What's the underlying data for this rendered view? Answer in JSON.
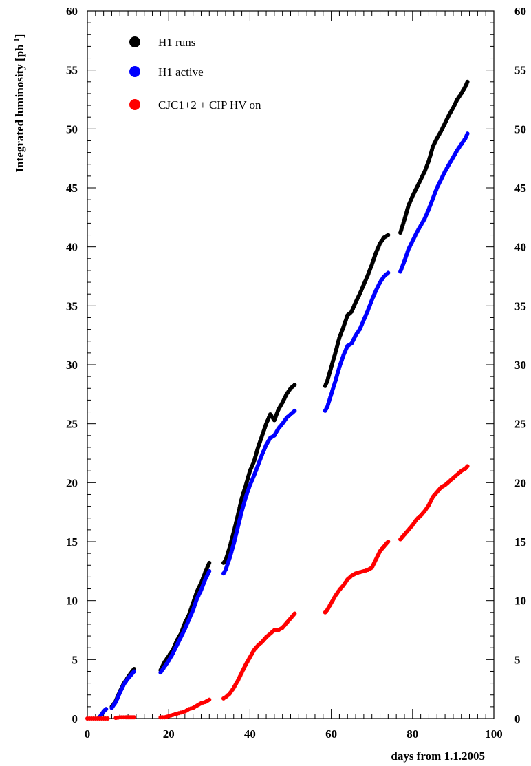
{
  "chart_data": {
    "type": "scatter",
    "title": "",
    "xlabel": "days from 1.1.2005",
    "ylabel": "Integrated luminosity [pb^-1]",
    "ylabel_main": "Integrated luminosity [pb",
    "ylabel_sup": "-1",
    "ylabel_close": "]",
    "xlim": [
      0,
      100
    ],
    "ylim": [
      0,
      60
    ],
    "xticks": [
      0,
      20,
      40,
      60,
      80,
      100
    ],
    "yticks": [
      0,
      5,
      10,
      15,
      20,
      25,
      30,
      35,
      40,
      45,
      50,
      55,
      60
    ],
    "right_axis_labels": true,
    "grid": false,
    "legend_position": "top-left",
    "series": [
      {
        "name": "H1 runs",
        "color": "#000000",
        "segments": [
          [
            [
              3.2,
              0.2
            ],
            [
              4.0,
              0.6
            ],
            [
              4.6,
              0.8
            ]
          ],
          [
            [
              6.0,
              1.0
            ],
            [
              7.0,
              1.5
            ],
            [
              8.0,
              2.3
            ],
            [
              9.0,
              3.0
            ],
            [
              10.0,
              3.5
            ],
            [
              11.0,
              4.0
            ],
            [
              11.5,
              4.2
            ]
          ],
          [
            [
              18.0,
              4.1
            ],
            [
              19.0,
              4.8
            ],
            [
              20.0,
              5.3
            ],
            [
              21.0,
              5.8
            ],
            [
              22.0,
              6.6
            ],
            [
              23.0,
              7.2
            ],
            [
              24.0,
              8.1
            ],
            [
              25.0,
              8.8
            ],
            [
              26.0,
              9.8
            ],
            [
              27.0,
              10.8
            ],
            [
              28.0,
              11.5
            ],
            [
              29.0,
              12.4
            ],
            [
              30.0,
              13.2
            ]
          ],
          [
            [
              33.5,
              13.2
            ],
            [
              34.0,
              13.4
            ],
            [
              35.0,
              14.5
            ],
            [
              36.0,
              15.8
            ],
            [
              37.0,
              17.2
            ],
            [
              38.0,
              18.7
            ],
            [
              39.0,
              19.8
            ],
            [
              40.0,
              21.0
            ],
            [
              41.0,
              21.8
            ],
            [
              42.0,
              23.0
            ],
            [
              43.0,
              24.0
            ],
            [
              44.0,
              25.0
            ],
            [
              45.0,
              25.8
            ],
            [
              46.0,
              25.3
            ],
            [
              47.0,
              26.2
            ],
            [
              48.0,
              26.8
            ],
            [
              49.0,
              27.5
            ],
            [
              50.0,
              28.0
            ],
            [
              51.0,
              28.3
            ]
          ],
          [
            [
              58.5,
              28.2
            ],
            [
              59.0,
              28.6
            ],
            [
              60.0,
              29.8
            ],
            [
              61.0,
              31.0
            ],
            [
              62.0,
              32.3
            ],
            [
              63.0,
              33.2
            ],
            [
              64.0,
              34.2
            ],
            [
              65.0,
              34.5
            ],
            [
              66.0,
              35.3
            ],
            [
              67.0,
              36.0
            ],
            [
              68.0,
              36.8
            ],
            [
              69.0,
              37.6
            ],
            [
              70.0,
              38.5
            ],
            [
              71.0,
              39.5
            ],
            [
              72.0,
              40.3
            ],
            [
              73.0,
              40.8
            ],
            [
              74.0,
              41.0
            ]
          ],
          [
            [
              77.0,
              41.2
            ],
            [
              78.0,
              42.3
            ],
            [
              79.0,
              43.5
            ],
            [
              80.0,
              44.3
            ],
            [
              81.0,
              45.0
            ],
            [
              82.0,
              45.7
            ],
            [
              83.0,
              46.4
            ],
            [
              84.0,
              47.3
            ],
            [
              85.0,
              48.5
            ],
            [
              86.0,
              49.2
            ],
            [
              87.0,
              49.8
            ],
            [
              88.0,
              50.5
            ],
            [
              89.0,
              51.2
            ],
            [
              90.0,
              51.8
            ],
            [
              91.0,
              52.5
            ],
            [
              92.0,
              53.0
            ],
            [
              93.0,
              53.6
            ],
            [
              93.5,
              54.0
            ]
          ]
        ]
      },
      {
        "name": "H1 active",
        "color": "#0000ff",
        "segments": [
          [
            [
              3.2,
              0.2
            ],
            [
              4.0,
              0.6
            ],
            [
              4.6,
              0.8
            ]
          ],
          [
            [
              6.0,
              0.9
            ],
            [
              7.0,
              1.4
            ],
            [
              8.0,
              2.2
            ],
            [
              9.0,
              2.9
            ],
            [
              10.0,
              3.4
            ],
            [
              11.0,
              3.8
            ],
            [
              11.5,
              4.0
            ]
          ],
          [
            [
              18.0,
              3.9
            ],
            [
              19.0,
              4.4
            ],
            [
              20.0,
              4.9
            ],
            [
              21.0,
              5.5
            ],
            [
              22.0,
              6.2
            ],
            [
              23.0,
              6.9
            ],
            [
              24.0,
              7.6
            ],
            [
              25.0,
              8.4
            ],
            [
              26.0,
              9.2
            ],
            [
              27.0,
              10.2
            ],
            [
              28.0,
              10.9
            ],
            [
              29.0,
              11.8
            ],
            [
              30.0,
              12.5
            ]
          ],
          [
            [
              33.5,
              12.3
            ],
            [
              34.0,
              12.6
            ],
            [
              35.0,
              13.6
            ],
            [
              36.0,
              14.8
            ],
            [
              37.0,
              16.2
            ],
            [
              38.0,
              17.6
            ],
            [
              39.0,
              18.8
            ],
            [
              40.0,
              19.8
            ],
            [
              41.0,
              20.6
            ],
            [
              42.0,
              21.5
            ],
            [
              43.0,
              22.4
            ],
            [
              44.0,
              23.2
            ],
            [
              45.0,
              23.8
            ],
            [
              46.0,
              24.0
            ],
            [
              47.0,
              24.6
            ],
            [
              48.0,
              25.0
            ],
            [
              49.0,
              25.5
            ],
            [
              50.0,
              25.8
            ],
            [
              51.0,
              26.1
            ]
          ],
          [
            [
              58.5,
              26.1
            ],
            [
              59.0,
              26.4
            ],
            [
              60.0,
              27.5
            ],
            [
              61.0,
              28.6
            ],
            [
              62.0,
              29.8
            ],
            [
              63.0,
              30.8
            ],
            [
              64.0,
              31.6
            ],
            [
              65.0,
              31.8
            ],
            [
              66.0,
              32.5
            ],
            [
              67.0,
              33.0
            ],
            [
              68.0,
              33.8
            ],
            [
              69.0,
              34.6
            ],
            [
              70.0,
              35.5
            ],
            [
              71.0,
              36.3
            ],
            [
              72.0,
              37.0
            ],
            [
              73.0,
              37.5
            ],
            [
              74.0,
              37.8
            ]
          ],
          [
            [
              77.0,
              37.9
            ],
            [
              78.0,
              38.8
            ],
            [
              79.0,
              39.8
            ],
            [
              80.0,
              40.5
            ],
            [
              81.0,
              41.2
            ],
            [
              82.0,
              41.8
            ],
            [
              83.0,
              42.4
            ],
            [
              84.0,
              43.2
            ],
            [
              85.0,
              44.1
            ],
            [
              86.0,
              45.0
            ],
            [
              87.0,
              45.7
            ],
            [
              88.0,
              46.4
            ],
            [
              89.0,
              47.0
            ],
            [
              90.0,
              47.6
            ],
            [
              91.0,
              48.2
            ],
            [
              92.0,
              48.7
            ],
            [
              93.0,
              49.2
            ],
            [
              93.5,
              49.6
            ]
          ]
        ]
      },
      {
        "name": "CJC1+2 + CIP HV on",
        "color": "#ff0000",
        "segments": [
          [
            [
              0.0,
              0.0
            ],
            [
              1.0,
              0.0
            ],
            [
              2.0,
              0.0
            ],
            [
              3.0,
              0.0
            ],
            [
              4.0,
              0.0
            ],
            [
              5.0,
              0.0
            ]
          ],
          [
            [
              7.0,
              0.05
            ],
            [
              8.0,
              0.1
            ],
            [
              9.0,
              0.1
            ],
            [
              10.0,
              0.1
            ],
            [
              11.0,
              0.1
            ],
            [
              11.5,
              0.1
            ]
          ],
          [
            [
              18.0,
              0.1
            ],
            [
              19.0,
              0.1
            ],
            [
              20.0,
              0.2
            ],
            [
              21.0,
              0.3
            ],
            [
              22.0,
              0.4
            ],
            [
              23.0,
              0.5
            ],
            [
              24.0,
              0.6
            ],
            [
              25.0,
              0.8
            ],
            [
              26.0,
              0.9
            ],
            [
              27.0,
              1.1
            ],
            [
              28.0,
              1.3
            ],
            [
              29.0,
              1.4
            ],
            [
              30.0,
              1.6
            ]
          ],
          [
            [
              33.5,
              1.7
            ],
            [
              34.0,
              1.8
            ],
            [
              35.0,
              2.1
            ],
            [
              36.0,
              2.6
            ],
            [
              37.0,
              3.2
            ],
            [
              38.0,
              3.9
            ],
            [
              39.0,
              4.6
            ],
            [
              40.0,
              5.2
            ],
            [
              41.0,
              5.8
            ],
            [
              42.0,
              6.2
            ],
            [
              43.0,
              6.5
            ],
            [
              44.0,
              6.9
            ],
            [
              45.0,
              7.2
            ],
            [
              46.0,
              7.5
            ],
            [
              47.0,
              7.5
            ],
            [
              48.0,
              7.7
            ],
            [
              49.0,
              8.1
            ],
            [
              50.0,
              8.5
            ],
            [
              51.0,
              8.9
            ]
          ],
          [
            [
              58.5,
              9.0
            ],
            [
              59.0,
              9.2
            ],
            [
              60.0,
              9.8
            ],
            [
              61.0,
              10.4
            ],
            [
              62.0,
              10.9
            ],
            [
              63.0,
              11.3
            ],
            [
              64.0,
              11.8
            ],
            [
              65.0,
              12.1
            ],
            [
              66.0,
              12.3
            ],
            [
              67.0,
              12.4
            ],
            [
              68.0,
              12.5
            ],
            [
              69.0,
              12.6
            ],
            [
              70.0,
              12.8
            ],
            [
              71.0,
              13.5
            ],
            [
              72.0,
              14.2
            ],
            [
              73.0,
              14.6
            ],
            [
              74.0,
              15.0
            ]
          ],
          [
            [
              77.0,
              15.2
            ],
            [
              78.0,
              15.6
            ],
            [
              79.0,
              16.0
            ],
            [
              80.0,
              16.4
            ],
            [
              81.0,
              16.9
            ],
            [
              82.0,
              17.2
            ],
            [
              83.0,
              17.6
            ],
            [
              84.0,
              18.1
            ],
            [
              85.0,
              18.8
            ],
            [
              86.0,
              19.2
            ],
            [
              87.0,
              19.6
            ],
            [
              88.0,
              19.8
            ],
            [
              89.0,
              20.1
            ],
            [
              90.0,
              20.4
            ],
            [
              91.0,
              20.7
            ],
            [
              92.0,
              21.0
            ],
            [
              93.0,
              21.2
            ],
            [
              93.5,
              21.4
            ]
          ]
        ]
      }
    ]
  }
}
